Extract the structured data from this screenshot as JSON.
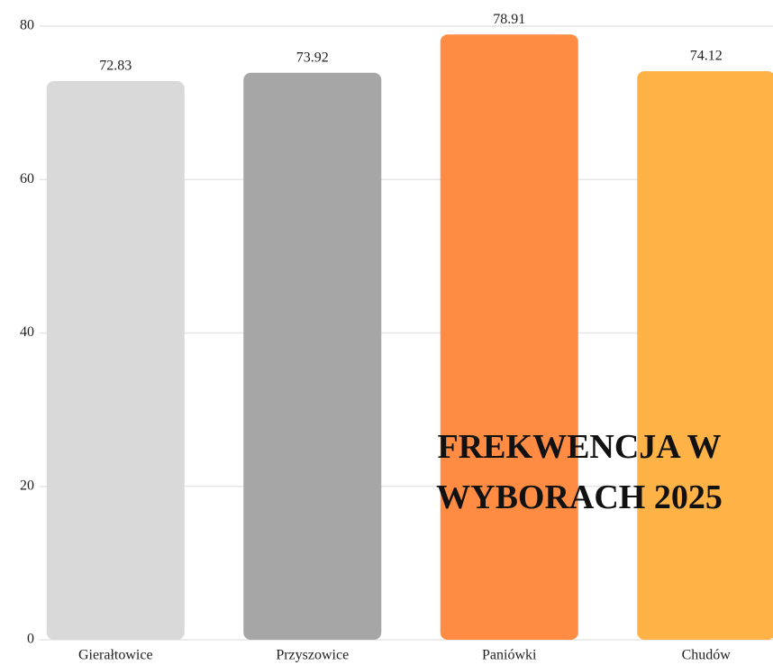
{
  "chart_data": {
    "type": "bar",
    "title": "FREKWENCJA W WYBORACH 2025",
    "categories": [
      "Gierałtowice",
      "Przyszowice",
      "Paniówki",
      "Chudów"
    ],
    "values": [
      72.83,
      73.92,
      78.91,
      74.12
    ],
    "colors": [
      "#d9d9d9",
      "#a6a6a6",
      "#ff8c42",
      "#ffb347"
    ],
    "ylim": [
      0,
      80
    ],
    "yticks": [
      0,
      20,
      40,
      60,
      80
    ],
    "grid": true
  }
}
